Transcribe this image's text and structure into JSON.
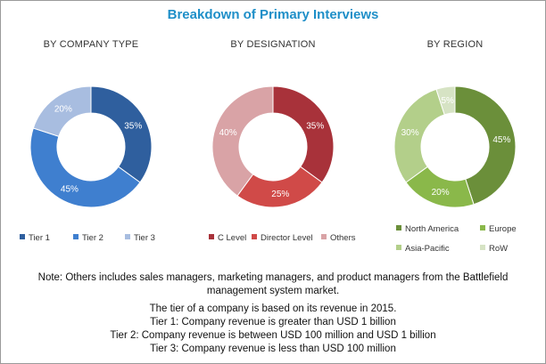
{
  "title": "Breakdown of Primary Interviews",
  "chart_data": [
    {
      "type": "pie",
      "title": "BY COMPANY TYPE",
      "categories": [
        "Tier 1",
        "Tier 2",
        "Tier 3"
      ],
      "values": [
        35,
        45,
        20
      ],
      "labels": [
        "35%",
        "45%",
        "20%"
      ],
      "colors": [
        "#2f5f9e",
        "#3f7fcf",
        "#a8bde0"
      ]
    },
    {
      "type": "pie",
      "title": "BY DESIGNATION",
      "categories": [
        "C Level",
        "Director Level",
        "Others"
      ],
      "values": [
        35,
        25,
        40
      ],
      "labels": [
        "35%",
        "25%",
        "40%"
      ],
      "colors": [
        "#a8323a",
        "#d04a48",
        "#d9a3a6"
      ]
    },
    {
      "type": "pie",
      "title": "BY REGION",
      "categories": [
        "North America",
        "Europe",
        "Asia-Pacific",
        "RoW"
      ],
      "values": [
        45,
        20,
        30,
        5
      ],
      "labels": [
        "45%",
        "20%",
        "30%",
        "5%"
      ],
      "colors": [
        "#6b8f3a",
        "#8ab84a",
        "#b3cf8a",
        "#d6e3c4"
      ]
    }
  ],
  "note": "Note: Others includes sales managers, marketing managers, and product managers from the Battlefield management system market.",
  "tier_notes": [
    "The tier of a company is based on its revenue in 2015.",
    "Tier 1: Company revenue is greater than USD 1 billion",
    "Tier 2: Company revenue is between USD 100 million and USD 1 billion",
    "Tier 3: Company revenue is less than USD 100 million"
  ]
}
